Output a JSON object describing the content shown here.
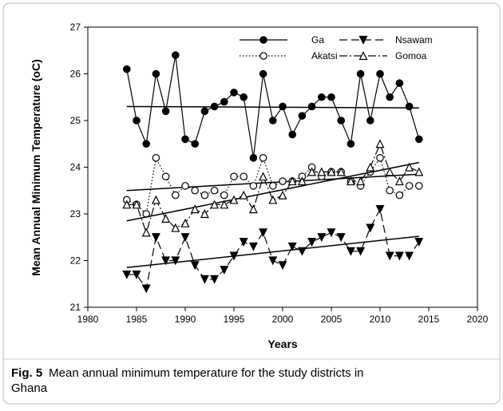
{
  "chart_data": {
    "type": "line",
    "xlabel": "Years",
    "ylabel": "Mean Annual Minimum Temperature (oC)",
    "x": [
      1984,
      1985,
      1986,
      1987,
      1988,
      1989,
      1990,
      1991,
      1992,
      1993,
      1994,
      1995,
      1996,
      1997,
      1998,
      1999,
      2000,
      2001,
      2002,
      2003,
      2004,
      2005,
      2006,
      2007,
      2008,
      2009,
      2010,
      2011,
      2012,
      2013,
      2014
    ],
    "xlim": [
      1980,
      2020
    ],
    "xticks": [
      1980,
      1985,
      1990,
      1995,
      2000,
      2005,
      2010,
      2015,
      2020
    ],
    "ylim": [
      21,
      27
    ],
    "yticks": [
      21,
      22,
      23,
      24,
      25,
      26,
      27
    ],
    "series": [
      {
        "name": "Ga",
        "color": "#000000",
        "marker": "circle",
        "fill": true,
        "dash": "none",
        "values": [
          26.1,
          25.0,
          24.5,
          26.0,
          25.2,
          26.4,
          24.6,
          24.5,
          25.2,
          25.3,
          25.4,
          25.6,
          25.5,
          24.2,
          26.0,
          25.0,
          25.3,
          24.7,
          25.1,
          25.3,
          25.5,
          25.5,
          25.0,
          24.5,
          26.0,
          25.0,
          26.0,
          25.5,
          25.8,
          25.3,
          24.6
        ],
        "trend": {
          "x": [
            1984,
            2014
          ],
          "values": [
            25.3,
            25.27
          ]
        }
      },
      {
        "name": "Nsawam",
        "color": "#000000",
        "marker": "triangle-down",
        "fill": true,
        "dash": "10 5",
        "values": [
          21.7,
          21.7,
          21.4,
          22.5,
          22.0,
          22.0,
          22.5,
          21.9,
          21.6,
          21.6,
          21.8,
          22.1,
          22.4,
          22.3,
          22.6,
          22.0,
          21.9,
          22.3,
          22.2,
          22.4,
          22.5,
          22.6,
          22.5,
          22.2,
          22.2,
          22.7,
          23.1,
          22.1,
          22.1,
          22.1,
          22.4
        ],
        "trend": {
          "x": [
            1984,
            2014
          ],
          "values": [
            21.85,
            22.52
          ]
        }
      },
      {
        "name": "Akatsi",
        "color": "#000000",
        "marker": "circle",
        "fill": false,
        "dash": "1.5 2.5",
        "values": [
          23.3,
          23.2,
          23.0,
          24.2,
          23.8,
          23.4,
          23.6,
          23.5,
          23.4,
          23.5,
          23.4,
          23.8,
          23.8,
          23.6,
          24.2,
          23.6,
          23.7,
          23.7,
          23.8,
          24.0,
          23.8,
          23.9,
          23.9,
          23.7,
          23.6,
          23.9,
          24.2,
          23.5,
          23.4,
          23.6,
          23.6
        ],
        "trend": {
          "x": [
            1984,
            2014
          ],
          "values": [
            23.5,
            23.85
          ]
        }
      },
      {
        "name": "Gomoa",
        "color": "#000000",
        "marker": "triangle-up",
        "fill": false,
        "dash": "10 3 2 3",
        "values": [
          23.2,
          23.2,
          22.6,
          23.3,
          22.9,
          22.7,
          22.8,
          23.1,
          23.0,
          23.2,
          23.2,
          23.3,
          23.4,
          23.1,
          23.8,
          23.3,
          23.4,
          23.7,
          23.7,
          23.9,
          23.9,
          23.9,
          23.9,
          23.7,
          23.7,
          24.0,
          24.5,
          23.9,
          23.7,
          24.0,
          23.9
        ],
        "trend": {
          "x": [
            1984,
            2014
          ],
          "values": [
            22.85,
            24.1
          ]
        }
      }
    ]
  },
  "caption": {
    "label": "Fig. 5",
    "text": "Mean annual minimum temperature for the study districts in Ghana"
  }
}
